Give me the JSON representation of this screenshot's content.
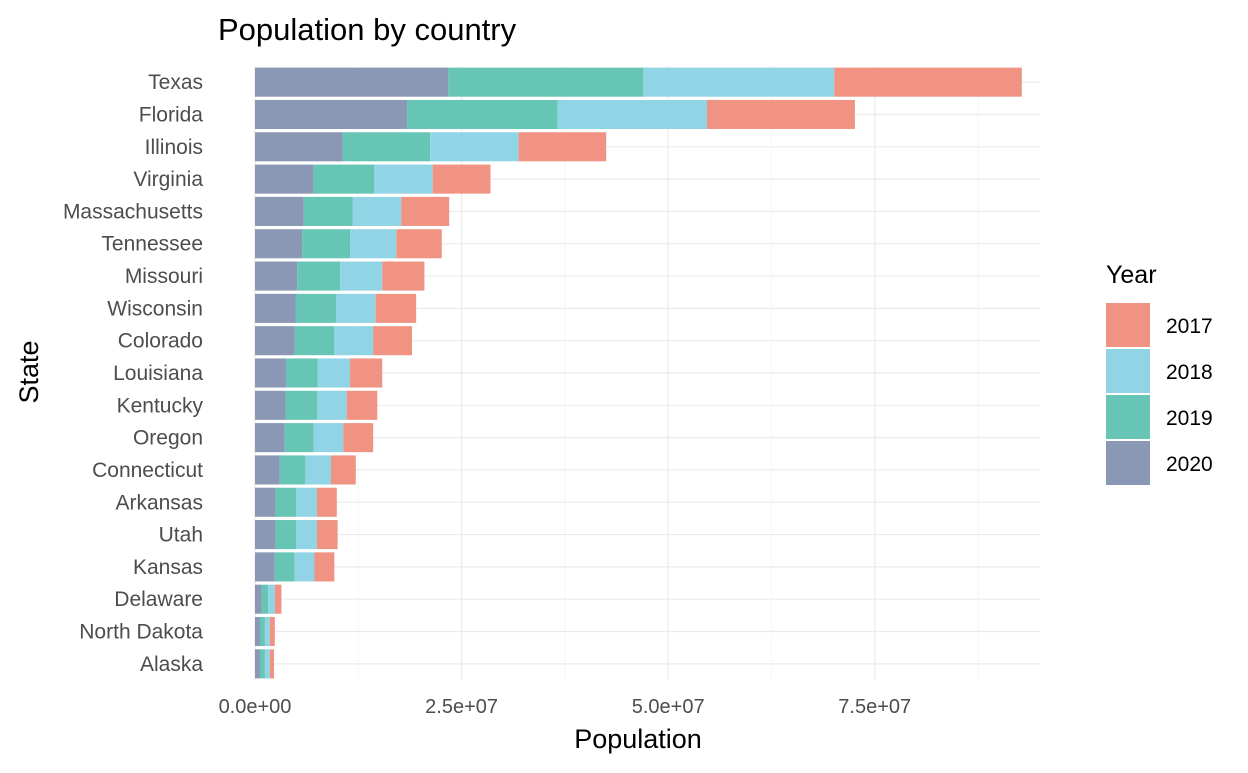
{
  "chart_data": {
    "type": "bar",
    "orientation": "horizontal",
    "stacked": true,
    "title": "Population by country",
    "xlabel": "Population",
    "ylabel": "State",
    "xlim": [
      0,
      95000000
    ],
    "x_ticks": [
      {
        "value": 0,
        "label": "0.0e+00"
      },
      {
        "value": 25000000,
        "label": "2.5e+07"
      },
      {
        "value": 50000000,
        "label": "5.0e+07"
      },
      {
        "value": 75000000,
        "label": "7.5e+07"
      }
    ],
    "grid": true,
    "legend": {
      "title": "Year",
      "position": "right",
      "entries": [
        "2017",
        "2018",
        "2019",
        "2020"
      ]
    },
    "categories": [
      "Texas",
      "Florida",
      "Illinois",
      "Virginia",
      "Massachusetts",
      "Tennessee",
      "Missouri",
      "Wisconsin",
      "Colorado",
      "Louisiana",
      "Kentucky",
      "Oregon",
      "Connecticut",
      "Arkansas",
      "Utah",
      "Kansas",
      "Delaware",
      "North Dakota",
      "Alaska"
    ],
    "series": [
      {
        "name": "2020",
        "color": "#8a97b5",
        "values": [
          23400000,
          18400000,
          10600000,
          7100000,
          5900000,
          5700000,
          5100000,
          4900000,
          4800000,
          3800000,
          3700000,
          3600000,
          3000000,
          2500000,
          2500000,
          2400000,
          800000,
          600000,
          600000
        ]
      },
      {
        "name": "2019",
        "color": "#66c5b4",
        "values": [
          23600000,
          18200000,
          10600000,
          7300000,
          5900000,
          5800000,
          5200000,
          4900000,
          4800000,
          3800000,
          3800000,
          3500000,
          3100000,
          2500000,
          2500000,
          2400000,
          800000,
          600000,
          600000
        ]
      },
      {
        "name": "2018",
        "color": "#91d4e5",
        "values": [
          23100000,
          18100000,
          10700000,
          7100000,
          5900000,
          5600000,
          5100000,
          4800000,
          4700000,
          3900000,
          3600000,
          3600000,
          3100000,
          2500000,
          2500000,
          2400000,
          800000,
          600000,
          600000
        ]
      },
      {
        "name": "2017",
        "color": "#f09383",
        "values": [
          22700000,
          17900000,
          10600000,
          7000000,
          5800000,
          5500000,
          5100000,
          4900000,
          4700000,
          3900000,
          3700000,
          3600000,
          3000000,
          2400000,
          2500000,
          2400000,
          800000,
          600000,
          500000
        ]
      }
    ]
  }
}
